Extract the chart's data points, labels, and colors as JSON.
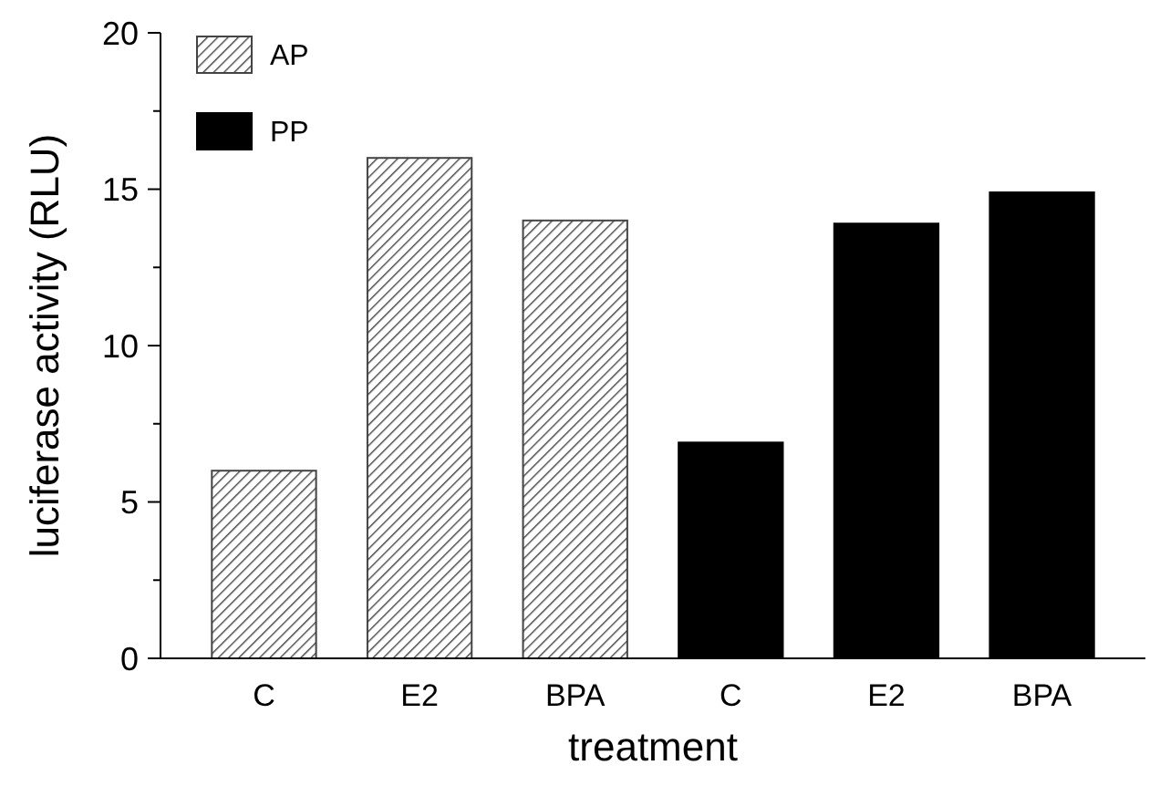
{
  "chart_data": {
    "type": "bar",
    "xlabel": "treatment",
    "ylabel": "luciferase activity (RLU)",
    "categories": [
      "C",
      "E2",
      "BPA",
      "C",
      "E2",
      "BPA"
    ],
    "series": [
      {
        "name": "AP",
        "color": "#444444",
        "values": [
          6,
          16,
          14,
          null,
          null,
          null
        ]
      },
      {
        "name": "PP",
        "color": "#000000",
        "values": [
          null,
          null,
          null,
          6.9,
          13.9,
          14.9
        ]
      }
    ],
    "ylim": [
      0,
      20
    ],
    "yticks": [
      0,
      {
        "value": 2.5,
        "label": null
      },
      5,
      {
        "value": 7.5,
        "label": null
      },
      10,
      {
        "value": 12.5,
        "label": null
      },
      15,
      {
        "value": 17.5,
        "label": null
      },
      20
    ],
    "legend": "top left"
  }
}
